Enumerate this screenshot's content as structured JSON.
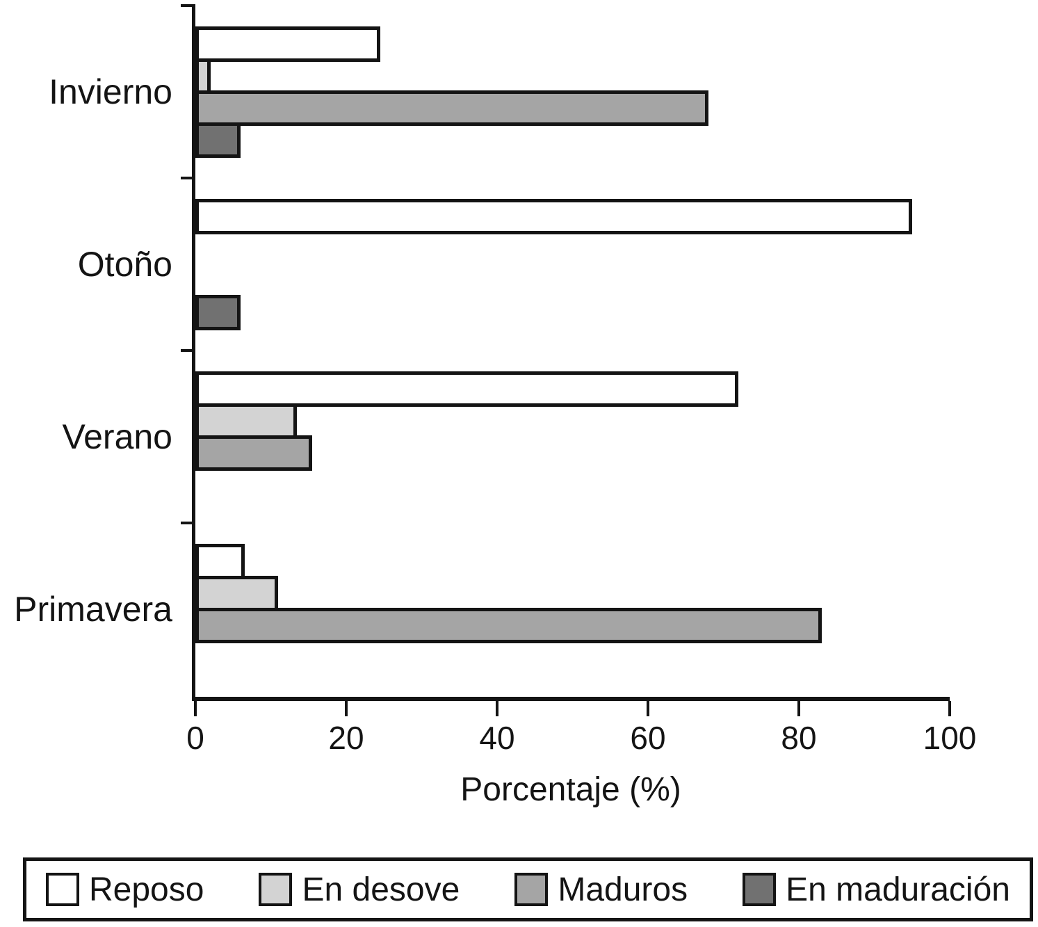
{
  "chart_data": {
    "type": "bar",
    "orientation": "horizontal",
    "categories": [
      "Invierno",
      "Otoño",
      "Verano",
      "Primavera"
    ],
    "series": [
      {
        "name": "Reposo",
        "color": "#ffffff",
        "values": [
          24.5,
          95,
          72,
          6.5
        ]
      },
      {
        "name": "En desove",
        "color": "#d3d3d3",
        "values": [
          2,
          0,
          13.5,
          11
        ]
      },
      {
        "name": "Maduros",
        "color": "#a5a5a5",
        "values": [
          68,
          0,
          15.5,
          83
        ]
      },
      {
        "name": "En maduración",
        "color": "#717171",
        "values": [
          6,
          6,
          0,
          0
        ]
      }
    ],
    "xlabel": "Porcentaje (%)",
    "xlim": [
      0,
      100
    ],
    "x_ticks": [
      0,
      20,
      40,
      60,
      80,
      100
    ],
    "grid": false,
    "legend_position": "bottom",
    "bar_border_color": "#141414",
    "axis_color": "#141414"
  }
}
